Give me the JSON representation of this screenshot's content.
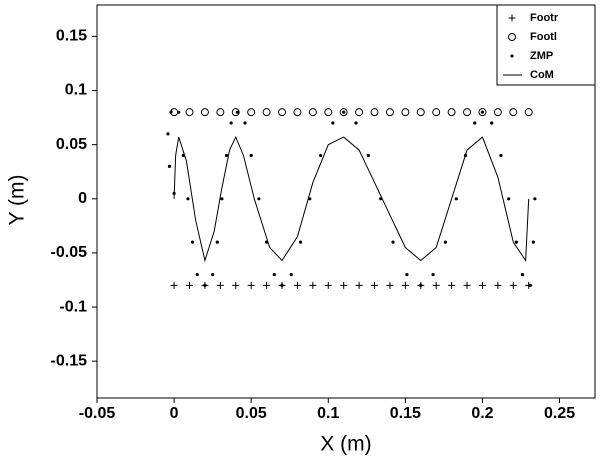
{
  "chart_data": {
    "type": "scatter",
    "xlabel": "X (m)",
    "ylabel": "Y (m)",
    "xlim": [
      -0.05,
      0.273
    ],
    "ylim": [
      -0.184,
      0.179
    ],
    "xticks": [
      -0.05,
      0,
      0.05,
      0.1,
      0.15,
      0.2,
      0.25
    ],
    "yticks": [
      -0.15,
      -0.1,
      -0.05,
      0,
      0.05,
      0.1,
      0.15
    ],
    "grid": false,
    "legend": "upper right",
    "series": [
      {
        "name": "Footr",
        "marker": "plus",
        "color": "#000000",
        "x": [
          0,
          0.01,
          0.02,
          0.03,
          0.04,
          0.05,
          0.06,
          0.07,
          0.08,
          0.09,
          0.1,
          0.11,
          0.12,
          0.13,
          0.14,
          0.15,
          0.16,
          0.17,
          0.18,
          0.19,
          0.2,
          0.21,
          0.22,
          0.23
        ],
        "values": [
          -0.08,
          -0.08,
          -0.08,
          -0.08,
          -0.08,
          -0.08,
          -0.08,
          -0.08,
          -0.08,
          -0.08,
          -0.08,
          -0.08,
          -0.08,
          -0.08,
          -0.08,
          -0.08,
          -0.08,
          -0.08,
          -0.08,
          -0.08,
          -0.08,
          -0.08,
          -0.08,
          -0.08
        ]
      },
      {
        "name": "Footl",
        "marker": "circle",
        "color": "#000000",
        "x": [
          0,
          0.01,
          0.02,
          0.03,
          0.04,
          0.05,
          0.06,
          0.07,
          0.08,
          0.09,
          0.1,
          0.11,
          0.12,
          0.13,
          0.14,
          0.15,
          0.16,
          0.17,
          0.18,
          0.19,
          0.2,
          0.21,
          0.22,
          0.23
        ],
        "values": [
          0.08,
          0.08,
          0.08,
          0.08,
          0.08,
          0.08,
          0.08,
          0.08,
          0.08,
          0.08,
          0.08,
          0.08,
          0.08,
          0.08,
          0.08,
          0.08,
          0.08,
          0.08,
          0.08,
          0.08,
          0.08,
          0.08,
          0.08,
          0.08
        ]
      },
      {
        "name": "ZMP",
        "marker": "dot",
        "color": "#000000",
        "x": [
          0,
          -0.003,
          -0.004,
          -0.002,
          0.003,
          0.006,
          0.009,
          0.012,
          0.015,
          0.02,
          0.025,
          0.028,
          0.031,
          0.034,
          0.037,
          0.041,
          0.046,
          0.05,
          0.055,
          0.06,
          0.065,
          0.07,
          0.076,
          0.082,
          0.088,
          0.095,
          0.103,
          0.11,
          0.118,
          0.126,
          0.134,
          0.142,
          0.151,
          0.16,
          0.168,
          0.176,
          0.183,
          0.189,
          0.195,
          0.2,
          0.206,
          0.212,
          0.217,
          0.222,
          0.226,
          0.231,
          0.233,
          0.234
        ],
        "values": [
          0.005,
          0.03,
          0.06,
          0.08,
          0.08,
          0.04,
          0,
          -0.04,
          -0.07,
          -0.08,
          -0.07,
          -0.04,
          0,
          0.04,
          0.07,
          0.08,
          0.07,
          0.04,
          0,
          -0.04,
          -0.07,
          -0.08,
          -0.07,
          -0.04,
          0,
          0.04,
          0.07,
          0.08,
          0.07,
          0.04,
          0,
          -0.04,
          -0.07,
          -0.08,
          -0.07,
          -0.04,
          0,
          0.04,
          0.07,
          0.08,
          0.07,
          0.04,
          0,
          -0.04,
          -0.07,
          -0.08,
          -0.04,
          0
        ]
      },
      {
        "name": "CoM",
        "marker": "line",
        "color": "#000000",
        "x": [
          0,
          0.001,
          0.003,
          0.008,
          0.014,
          0.02,
          0.026,
          0.031,
          0.036,
          0.04,
          0.045,
          0.052,
          0.062,
          0.07,
          0.08,
          0.09,
          0.1,
          0.11,
          0.12,
          0.135,
          0.15,
          0.16,
          0.17,
          0.18,
          0.19,
          0.2,
          0.21,
          0.22,
          0.228,
          0.23
        ],
        "values": [
          0,
          0.04,
          0.057,
          0.035,
          -0.02,
          -0.057,
          -0.03,
          0.01,
          0.045,
          0.057,
          0.04,
          0,
          -0.045,
          -0.057,
          -0.035,
          0.015,
          0.05,
          0.057,
          0.045,
          0,
          -0.045,
          -0.057,
          -0.045,
          0,
          0.045,
          0.057,
          0.02,
          -0.04,
          -0.057,
          0
        ]
      }
    ]
  }
}
